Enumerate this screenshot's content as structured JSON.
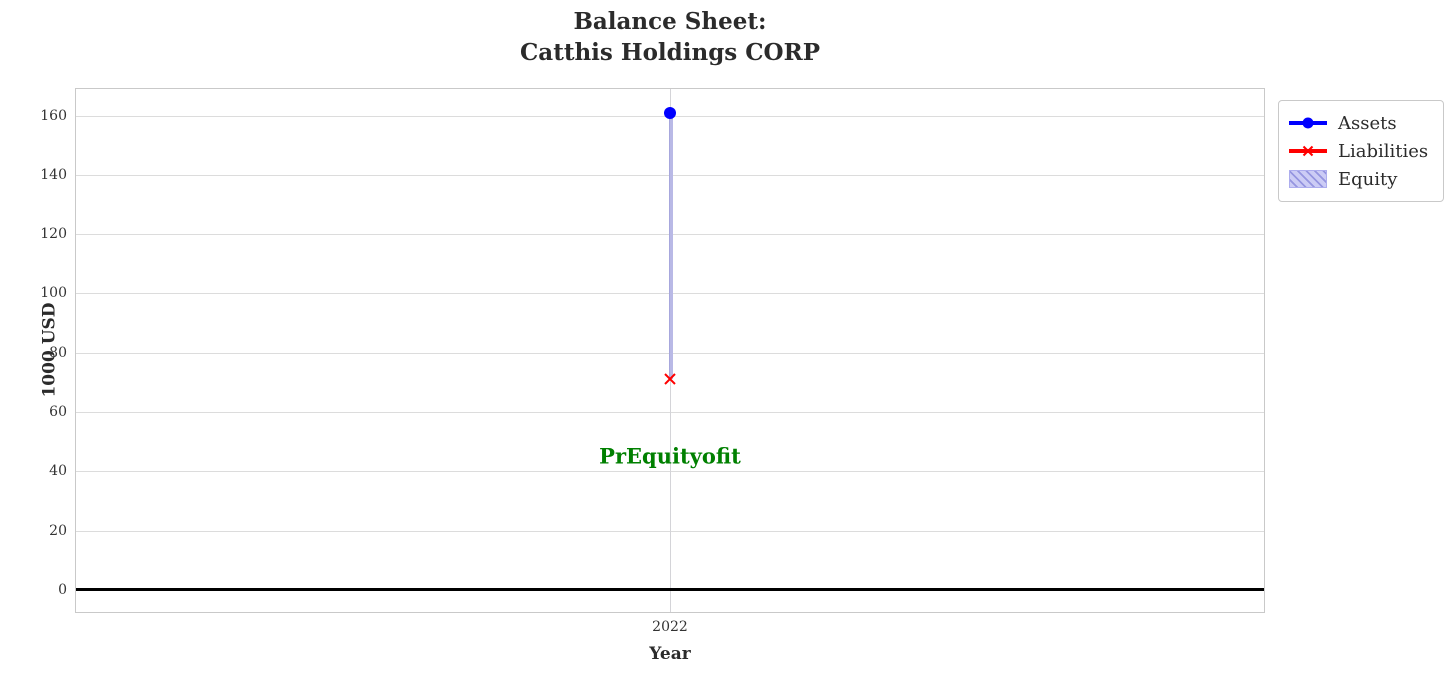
{
  "title": {
    "line1": "Balance Sheet:",
    "line2": "Catthis Holdings CORP"
  },
  "chart_data": {
    "type": "line",
    "x": [
      "2022"
    ],
    "series": [
      {
        "name": "Assets",
        "values": [
          161
        ],
        "color": "#0000ff",
        "marker": "circle"
      },
      {
        "name": "Liabilities",
        "values": [
          71
        ],
        "color": "#ff0000",
        "marker": "x"
      },
      {
        "name": "Equity",
        "values": [
          90
        ],
        "color": "#ccccf5",
        "style": "hatched-band",
        "band": [
          71,
          161
        ]
      }
    ],
    "title": "Balance Sheet:\nCatthis Holdings CORP",
    "xlabel": "Year",
    "ylabel": "1000 USD",
    "ylim": [
      -7.5,
      169
    ],
    "yticks": [
      0,
      20,
      40,
      60,
      80,
      100,
      120,
      140,
      160
    ],
    "grid": true,
    "zero_line": true,
    "legend_position": "upper-right-outside",
    "annotation": {
      "text": "PrEquityofit",
      "color": "#008000",
      "x": "2022",
      "y": 45
    }
  },
  "legend": {
    "items": [
      "Assets",
      "Liabilities",
      "Equity"
    ]
  },
  "colors": {
    "assets": "#0000ff",
    "liabilities": "#ff0000",
    "equity_fill": "#ccccf5",
    "equity_hatch": "#9595e0",
    "annotation_green": "#008000",
    "grid": "#dcdcdc",
    "zero_line": "#000000"
  }
}
